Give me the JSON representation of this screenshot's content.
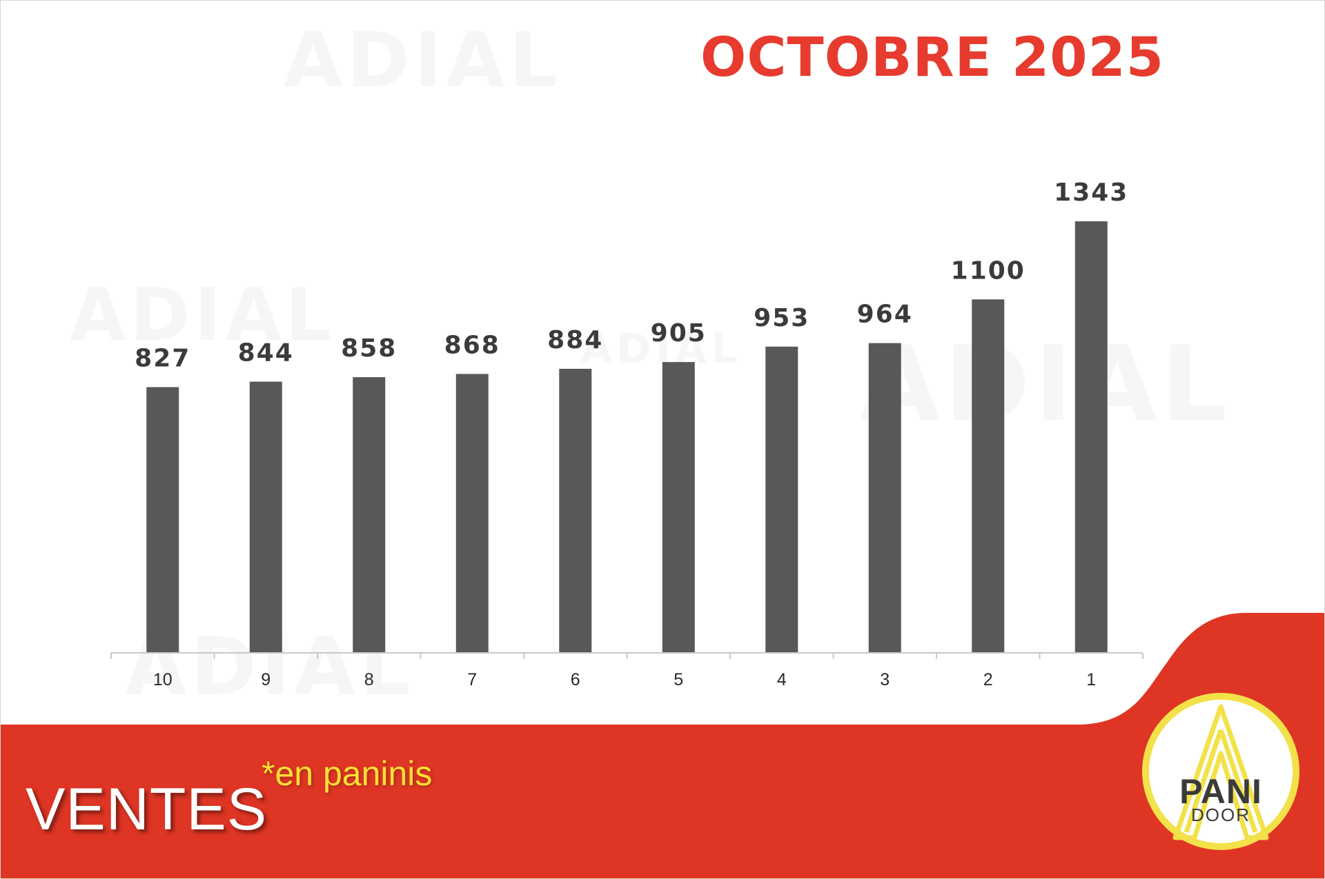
{
  "header": {
    "title": "OCTOBRE 2025",
    "watermark_text": "ADIAL"
  },
  "footer": {
    "label": "VENTES",
    "unit_note": "*en paninis"
  },
  "logo": {
    "line1": "PANI",
    "line2": "DOOR"
  },
  "colors": {
    "bar": "#58585a",
    "title": "#e63b2e",
    "footer_band": "#de3524",
    "unit_note": "#ffe033",
    "logo_ring": "#f3e14a"
  },
  "chart_data": {
    "type": "bar",
    "categories": [
      "10",
      "9",
      "8",
      "7",
      "6",
      "5",
      "4",
      "3",
      "2",
      "1"
    ],
    "values": [
      827,
      844,
      858,
      868,
      884,
      905,
      953,
      964,
      1100,
      1343
    ],
    "data_labels": [
      "827",
      "844",
      "858",
      "868",
      "884",
      "905",
      "953",
      "964",
      "1100",
      "1343"
    ],
    "title": "",
    "xlabel": "",
    "ylabel": "",
    "ylim": [
      0,
      1343
    ],
    "grid": false,
    "legend": "none"
  }
}
